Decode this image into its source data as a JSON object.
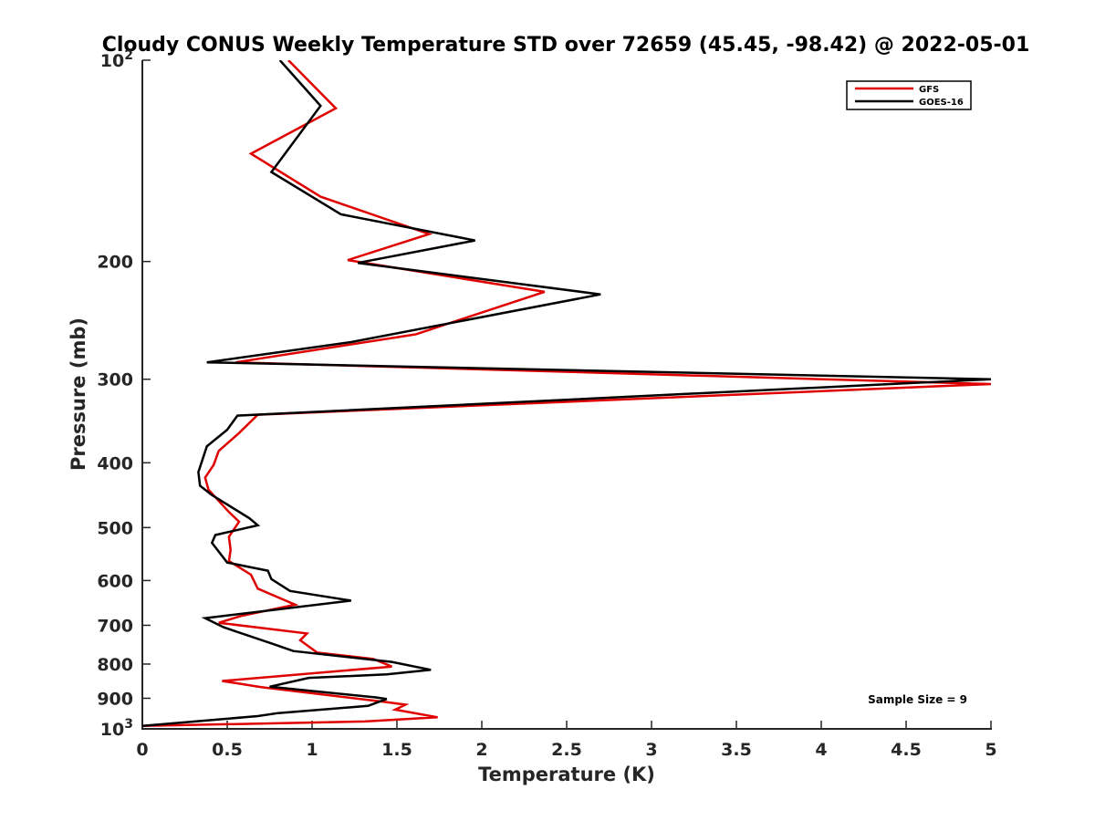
{
  "chart_data": {
    "type": "line",
    "title": "Cloudy CONUS Weekly Temperature STD over 72659 (45.45, -98.42) @ 2022-05-01",
    "xlabel": "Temperature (K)",
    "ylabel": "Pressure (mb)",
    "xlim": [
      0,
      5
    ],
    "ylim": [
      100,
      1000
    ],
    "y_scale": "log",
    "y_reversed": true,
    "x_ticks": [
      "0",
      "0.5",
      "1",
      "1.5",
      "2",
      "2.5",
      "3",
      "3.5",
      "4",
      "4.5",
      "5"
    ],
    "y_ticks": [
      {
        "value": 100,
        "base": "10",
        "exp": "2"
      },
      {
        "value": 200,
        "label": "200"
      },
      {
        "value": 300,
        "label": "300"
      },
      {
        "value": 400,
        "label": "400"
      },
      {
        "value": 500,
        "label": "500"
      },
      {
        "value": 600,
        "label": "600"
      },
      {
        "value": 700,
        "label": "700"
      },
      {
        "value": 800,
        "label": "800"
      },
      {
        "value": 900,
        "label": "900"
      },
      {
        "value": 1000,
        "base": "10",
        "exp": "3"
      }
    ],
    "grid": false,
    "legend_position": "top-right",
    "annotation": "Sample Size = 9",
    "series": [
      {
        "name": "GFS",
        "color": "#e00000",
        "points": [
          [
            0.86,
            100
          ],
          [
            1.14,
            118
          ],
          [
            0.64,
            138
          ],
          [
            1.05,
            160
          ],
          [
            1.69,
            182
          ],
          [
            1.21,
            199
          ],
          [
            2.37,
            222
          ],
          [
            1.61,
            257
          ],
          [
            0.55,
            283
          ],
          [
            5.0,
            305
          ],
          [
            0.68,
            339
          ],
          [
            0.57,
            361
          ],
          [
            0.45,
            384
          ],
          [
            0.42,
            403
          ],
          [
            0.37,
            421
          ],
          [
            0.39,
            439
          ],
          [
            0.51,
            474
          ],
          [
            0.57,
            490
          ],
          [
            0.51,
            516
          ],
          [
            0.52,
            540
          ],
          [
            0.51,
            561
          ],
          [
            0.64,
            588
          ],
          [
            0.68,
            617
          ],
          [
            0.9,
            652
          ],
          [
            0.58,
            678
          ],
          [
            0.45,
            694
          ],
          [
            0.97,
            720
          ],
          [
            0.93,
            737
          ],
          [
            1.03,
            769
          ],
          [
            1.36,
            786
          ],
          [
            1.47,
            807
          ],
          [
            0.47,
            848
          ],
          [
            0.7,
            866
          ],
          [
            1.42,
            911
          ],
          [
            1.55,
            920
          ],
          [
            1.49,
            936
          ],
          [
            1.74,
            961
          ],
          [
            1.31,
            975
          ],
          [
            0.0,
            990
          ]
        ]
      },
      {
        "name": "GOES-16",
        "color": "#000000",
        "points": [
          [
            0.81,
            100
          ],
          [
            1.05,
            117
          ],
          [
            0.76,
            147
          ],
          [
            1.17,
            170
          ],
          [
            1.96,
            186
          ],
          [
            1.27,
            201
          ],
          [
            2.7,
            224
          ],
          [
            1.23,
            264
          ],
          [
            0.38,
            283
          ],
          [
            5.0,
            300
          ],
          [
            0.56,
            340
          ],
          [
            0.5,
            357
          ],
          [
            0.38,
            378
          ],
          [
            0.33,
            413
          ],
          [
            0.34,
            433
          ],
          [
            0.41,
            447
          ],
          [
            0.63,
            484
          ],
          [
            0.68,
            496
          ],
          [
            0.43,
            513
          ],
          [
            0.41,
            527
          ],
          [
            0.5,
            564
          ],
          [
            0.74,
            580
          ],
          [
            0.76,
            597
          ],
          [
            0.87,
            622
          ],
          [
            1.23,
            643
          ],
          [
            0.37,
            683
          ],
          [
            0.48,
            705
          ],
          [
            0.76,
            745
          ],
          [
            0.89,
            765
          ],
          [
            1.47,
            794
          ],
          [
            1.7,
            816
          ],
          [
            1.44,
            829
          ],
          [
            0.98,
            839
          ],
          [
            0.75,
            865
          ],
          [
            1.37,
            897
          ],
          [
            1.44,
            902
          ],
          [
            1.33,
            924
          ],
          [
            0.8,
            947
          ],
          [
            0.68,
            957
          ],
          [
            0.0,
            990
          ]
        ]
      }
    ]
  }
}
